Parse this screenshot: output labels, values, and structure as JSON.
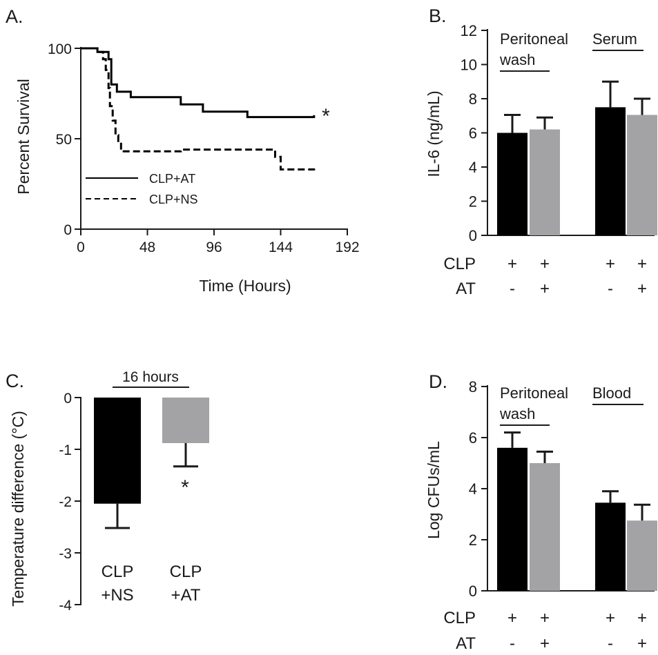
{
  "colors": {
    "black": "#000000",
    "gray": "#a3a3a5",
    "axis": "#1a1a1a"
  },
  "chart_data": [
    {
      "panel": "A.",
      "type": "line",
      "xlabel": "Time (Hours)",
      "ylabel": "Percent Survival",
      "xticks": [
        "0",
        "48",
        "96",
        "144",
        "192"
      ],
      "yticks": [
        "0",
        "50",
        "100"
      ],
      "xlim": [
        0,
        192
      ],
      "ylim": [
        0,
        100
      ],
      "series": [
        {
          "name": "CLP+AT",
          "style": "solid",
          "points": [
            [
              0,
              100
            ],
            [
              12,
              100
            ],
            [
              12,
              98
            ],
            [
              20,
              98
            ],
            [
              20,
              94
            ],
            [
              22,
              94
            ],
            [
              22,
              80
            ],
            [
              26,
              80
            ],
            [
              26,
              76
            ],
            [
              36,
              76
            ],
            [
              36,
              73
            ],
            [
              72,
              73
            ],
            [
              72,
              69
            ],
            [
              88,
              69
            ],
            [
              88,
              65
            ],
            [
              120,
              65
            ],
            [
              120,
              62
            ],
            [
              168,
              62
            ],
            [
              168,
              63
            ]
          ]
        },
        {
          "name": "CLP+NS",
          "style": "dashed",
          "points": [
            [
              0,
              100
            ],
            [
              12,
              100
            ],
            [
              12,
              98
            ],
            [
              16,
              98
            ],
            [
              16,
              94
            ],
            [
              18,
              94
            ],
            [
              18,
              88
            ],
            [
              20,
              88
            ],
            [
              20,
              78
            ],
            [
              21,
              78
            ],
            [
              21,
              68
            ],
            [
              23,
              68
            ],
            [
              23,
              60
            ],
            [
              25,
              60
            ],
            [
              25,
              52
            ],
            [
              27,
              52
            ],
            [
              27,
              48
            ],
            [
              29,
              48
            ],
            [
              29,
              43
            ],
            [
              72,
              43
            ],
            [
              72,
              44
            ],
            [
              140,
              44
            ],
            [
              140,
              40
            ],
            [
              144,
              40
            ],
            [
              144,
              33
            ],
            [
              168,
              33
            ],
            [
              168,
              35
            ]
          ]
        }
      ],
      "annotations": [
        "*"
      ]
    },
    {
      "panel": "B.",
      "type": "bar",
      "ylabel": "IL-6 (ng/mL)",
      "yticks": [
        "0",
        "2",
        "4",
        "6",
        "8",
        "10",
        "12"
      ],
      "ylim": [
        0,
        12
      ],
      "groups": [
        {
          "label_lines": [
            "Peritoneal",
            "wash"
          ],
          "bars": [
            {
              "value": 6.0,
              "error": 1.05,
              "color": "black"
            },
            {
              "value": 6.2,
              "error": 0.7,
              "color": "gray"
            }
          ]
        },
        {
          "label_lines": [
            "Serum"
          ],
          "bars": [
            {
              "value": 7.5,
              "error": 1.5,
              "color": "black"
            },
            {
              "value": 7.05,
              "error": 0.95,
              "color": "gray"
            }
          ]
        }
      ],
      "row_labels": [
        "CLP",
        "AT"
      ],
      "row_values": [
        [
          "+",
          "+",
          "+",
          "+"
        ],
        [
          "-",
          "+",
          "-",
          "+"
        ]
      ]
    },
    {
      "panel": "C.",
      "type": "bar",
      "title": "16 hours",
      "ylabel": "Temperature difference (°C)",
      "yticks": [
        "0",
        "-1",
        "-2",
        "-3",
        "-4"
      ],
      "ylim": [
        -4,
        0
      ],
      "bars": [
        {
          "label_lines": [
            "CLP",
            "+NS"
          ],
          "value": -2.05,
          "error": 0.47,
          "color": "black"
        },
        {
          "label_lines": [
            "CLP",
            "+AT"
          ],
          "value": -0.88,
          "error": 0.45,
          "color": "gray"
        }
      ],
      "annotations": [
        "*"
      ]
    },
    {
      "panel": "D.",
      "type": "bar",
      "ylabel": "Log CFUs/mL",
      "yticks": [
        "0",
        "2",
        "4",
        "6",
        "8"
      ],
      "ylim": [
        0,
        8
      ],
      "groups": [
        {
          "label_lines": [
            "Peritoneal",
            "wash"
          ],
          "bars": [
            {
              "value": 5.6,
              "error": 0.6,
              "color": "black"
            },
            {
              "value": 5.0,
              "error": 0.45,
              "color": "gray"
            }
          ]
        },
        {
          "label_lines": [
            "Blood"
          ],
          "bars": [
            {
              "value": 3.45,
              "error": 0.45,
              "color": "black"
            },
            {
              "value": 2.75,
              "error": 0.62,
              "color": "gray"
            }
          ]
        }
      ],
      "row_labels": [
        "CLP",
        "AT"
      ],
      "row_values": [
        [
          "+",
          "+",
          "+",
          "+"
        ],
        [
          "-",
          "+",
          "-",
          "+"
        ]
      ]
    }
  ]
}
